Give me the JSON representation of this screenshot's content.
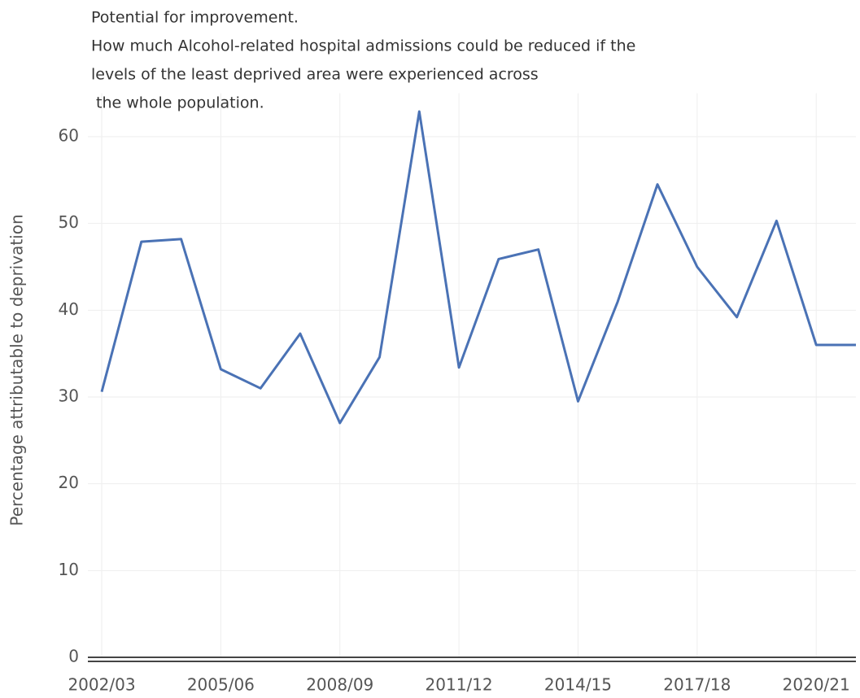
{
  "chart_data": {
    "type": "line",
    "title": [
      "Potential for improvement.",
      "How much Alcohol-related hospital admissions could be reduced if the",
      "levels of the least deprived area were experienced across",
      " the whole population."
    ],
    "y_label": "Percentage attributable to deprivation",
    "categories": [
      "2002/03",
      null,
      null,
      "2005/06",
      null,
      null,
      "2008/09",
      null,
      null,
      "2011/12",
      null,
      null,
      "2014/15",
      null,
      null,
      "2017/18",
      null,
      null,
      "2020/21",
      null
    ],
    "values": [
      30.6,
      47.9,
      48.2,
      33.2,
      31.0,
      37.3,
      27.0,
      34.6,
      62.9,
      33.4,
      45.9,
      47.0,
      29.5,
      41.0,
      54.5,
      45.0,
      39.2,
      50.3,
      36.0,
      36.0
    ],
    "color": "#4a72b5",
    "ylim": [
      0,
      65
    ],
    "yticks": [
      0,
      10,
      20,
      30,
      40,
      50,
      60
    ],
    "grid": true
  }
}
